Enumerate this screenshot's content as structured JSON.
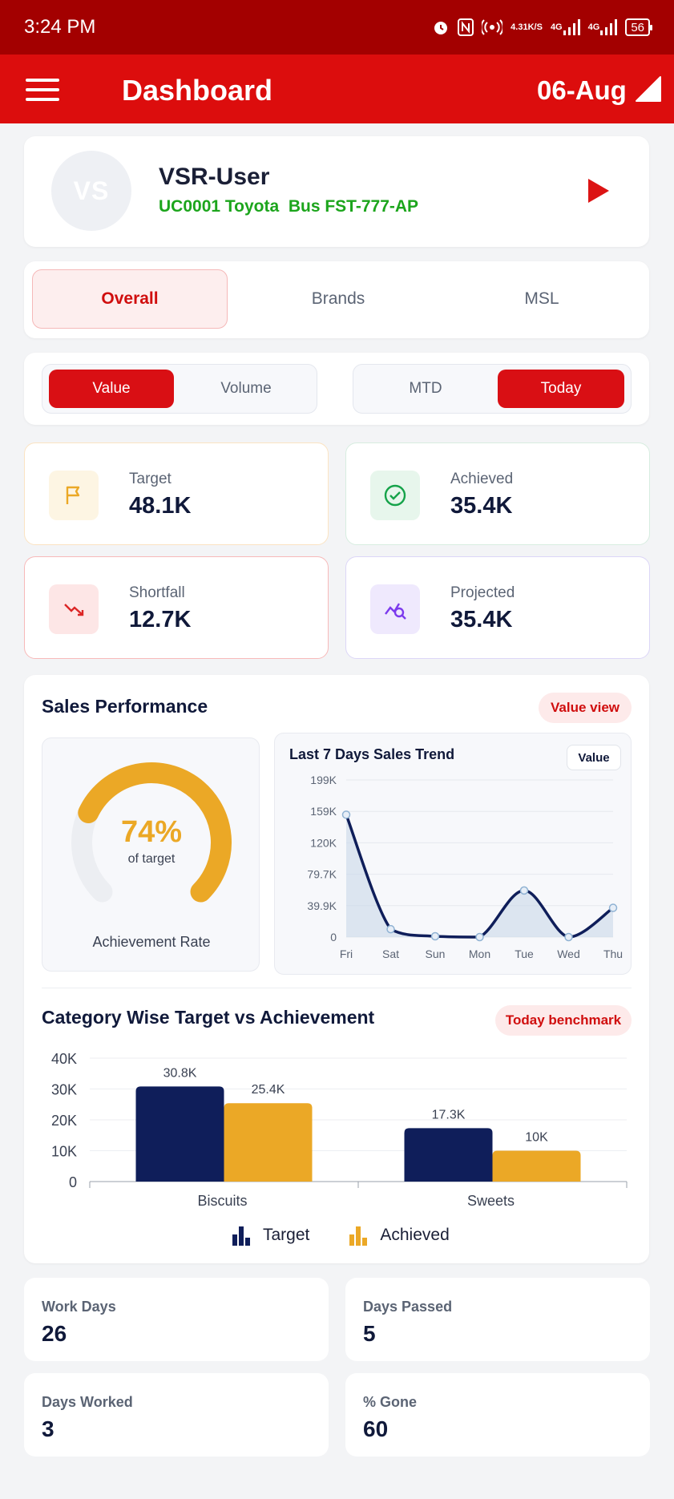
{
  "status_bar": {
    "time": "3:24 PM",
    "speed_top": "4.31",
    "speed_bottom": "K/S",
    "net1": "4G",
    "net2": "4G",
    "battery": "56"
  },
  "app_bar": {
    "title": "Dashboard",
    "date": "06-Aug"
  },
  "user": {
    "initials": "VS",
    "name": "VSR-User",
    "details": "UC0001 Toyota  Bus FST-777-AP"
  },
  "tabs": [
    {
      "label": "Overall",
      "active": true
    },
    {
      "label": "Brands",
      "active": false
    },
    {
      "label": "MSL",
      "active": false
    }
  ],
  "toggles": {
    "metric": [
      {
        "label": "Value",
        "on": true
      },
      {
        "label": "Volume",
        "on": false
      }
    ],
    "period": [
      {
        "label": "MTD",
        "on": false
      },
      {
        "label": "Today",
        "on": true
      }
    ]
  },
  "kpis": [
    {
      "label": "Target",
      "value": "48.1K",
      "icon": "flag-icon",
      "color": "#eba826"
    },
    {
      "label": "Achieved",
      "value": "35.4K",
      "icon": "check-circle-icon",
      "color": "#16a34a"
    },
    {
      "label": "Shortfall",
      "value": "12.7K",
      "icon": "trend-down-icon",
      "color": "#dc2626"
    },
    {
      "label": "Projected",
      "value": "35.4K",
      "icon": "projection-icon",
      "color": "#7c3aed"
    }
  ],
  "sales_performance": {
    "title": "Sales Performance",
    "badge": "Value view",
    "achievement_percent": "74%",
    "achievement_fraction": 0.74,
    "achievement_sub": "of target",
    "achievement_label": "Achievement Rate"
  },
  "trend": {
    "title": "Last 7 Days Sales Trend",
    "button": "Value"
  },
  "category": {
    "title": "Category Wise Target vs Achievement",
    "badge": "Today benchmark"
  },
  "chart_data": [
    {
      "type": "area",
      "title": "Last 7 Days Sales Trend",
      "x": [
        "Fri",
        "Sat",
        "Sun",
        "Mon",
        "Tue",
        "Wed",
        "Thu"
      ],
      "series": [
        {
          "values": [
            155000,
            10000,
            1000,
            0,
            59000,
            0,
            37000
          ]
        }
      ],
      "y_ticks": [
        "199K",
        "159K",
        "120K",
        "79.7K",
        "39.9K",
        "0"
      ],
      "ylim": [
        0,
        199000
      ],
      "grid": true,
      "color": "#0f1e5a"
    },
    {
      "type": "bar",
      "title": "Category Wise Target vs Achievement",
      "categories": [
        "Biscuits",
        "Sweets"
      ],
      "series": [
        {
          "name": "Target",
          "values": [
            30.8,
            17.3
          ],
          "labels": [
            "30.8K",
            "17.3K"
          ],
          "color": "#0f1e5a"
        },
        {
          "name": "Achieved",
          "values": [
            25.4,
            10
          ],
          "labels": [
            "25.4K",
            "10K"
          ],
          "color": "#eba826"
        }
      ],
      "y_ticks": [
        "40K",
        "30K",
        "20K",
        "10K",
        "0"
      ],
      "ylim": [
        0,
        40
      ],
      "grid": true,
      "legend": "bottom-center"
    }
  ],
  "stats": [
    {
      "label": "Work Days",
      "value": "26"
    },
    {
      "label": "Days Passed",
      "value": "5"
    },
    {
      "label": "Days Worked",
      "value": "3"
    },
    {
      "label": "% Gone",
      "value": "60"
    }
  ]
}
